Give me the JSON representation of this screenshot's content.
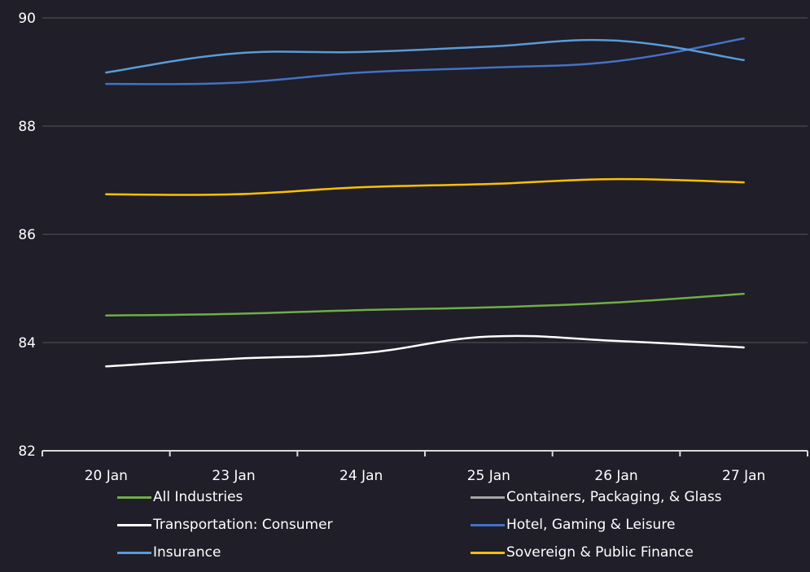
{
  "chart_data": {
    "type": "line",
    "title": "",
    "xlabel": "",
    "ylabel": "",
    "categories": [
      "20 Jan",
      "23 Jan",
      "24 Jan",
      "25 Jan",
      "26 Jan",
      "27 Jan"
    ],
    "ylim": [
      82,
      90
    ],
    "yticks": [
      "82",
      "84",
      "86",
      "88",
      "90"
    ],
    "grid": true,
    "legend_position": "bottom",
    "series": [
      {
        "name": "All Industries",
        "color": "#70ad47",
        "values": [
          84.5,
          84.53,
          84.6,
          84.65,
          84.74,
          84.9
        ]
      },
      {
        "name": "Containers, Packaging, & Glass",
        "color": "#a5a5a5",
        "values": []
      },
      {
        "name": "Transportation: Consumer",
        "color": "#ffffff",
        "values": [
          83.56,
          83.7,
          83.8,
          84.11,
          84.03,
          83.91
        ]
      },
      {
        "name": "Hotel, Gaming & Leisure",
        "color": "#4472c4",
        "values": [
          88.78,
          88.8,
          88.99,
          89.08,
          89.2,
          89.62
        ]
      },
      {
        "name": "Insurance",
        "color": "#5b9bd5",
        "values": [
          88.99,
          89.34,
          89.37,
          89.47,
          89.58,
          89.22
        ]
      },
      {
        "name": "Sovereign & Public Finance",
        "color": "#ffc000",
        "values": [
          86.74,
          86.74,
          86.87,
          86.93,
          87.02,
          86.96
        ]
      }
    ]
  }
}
